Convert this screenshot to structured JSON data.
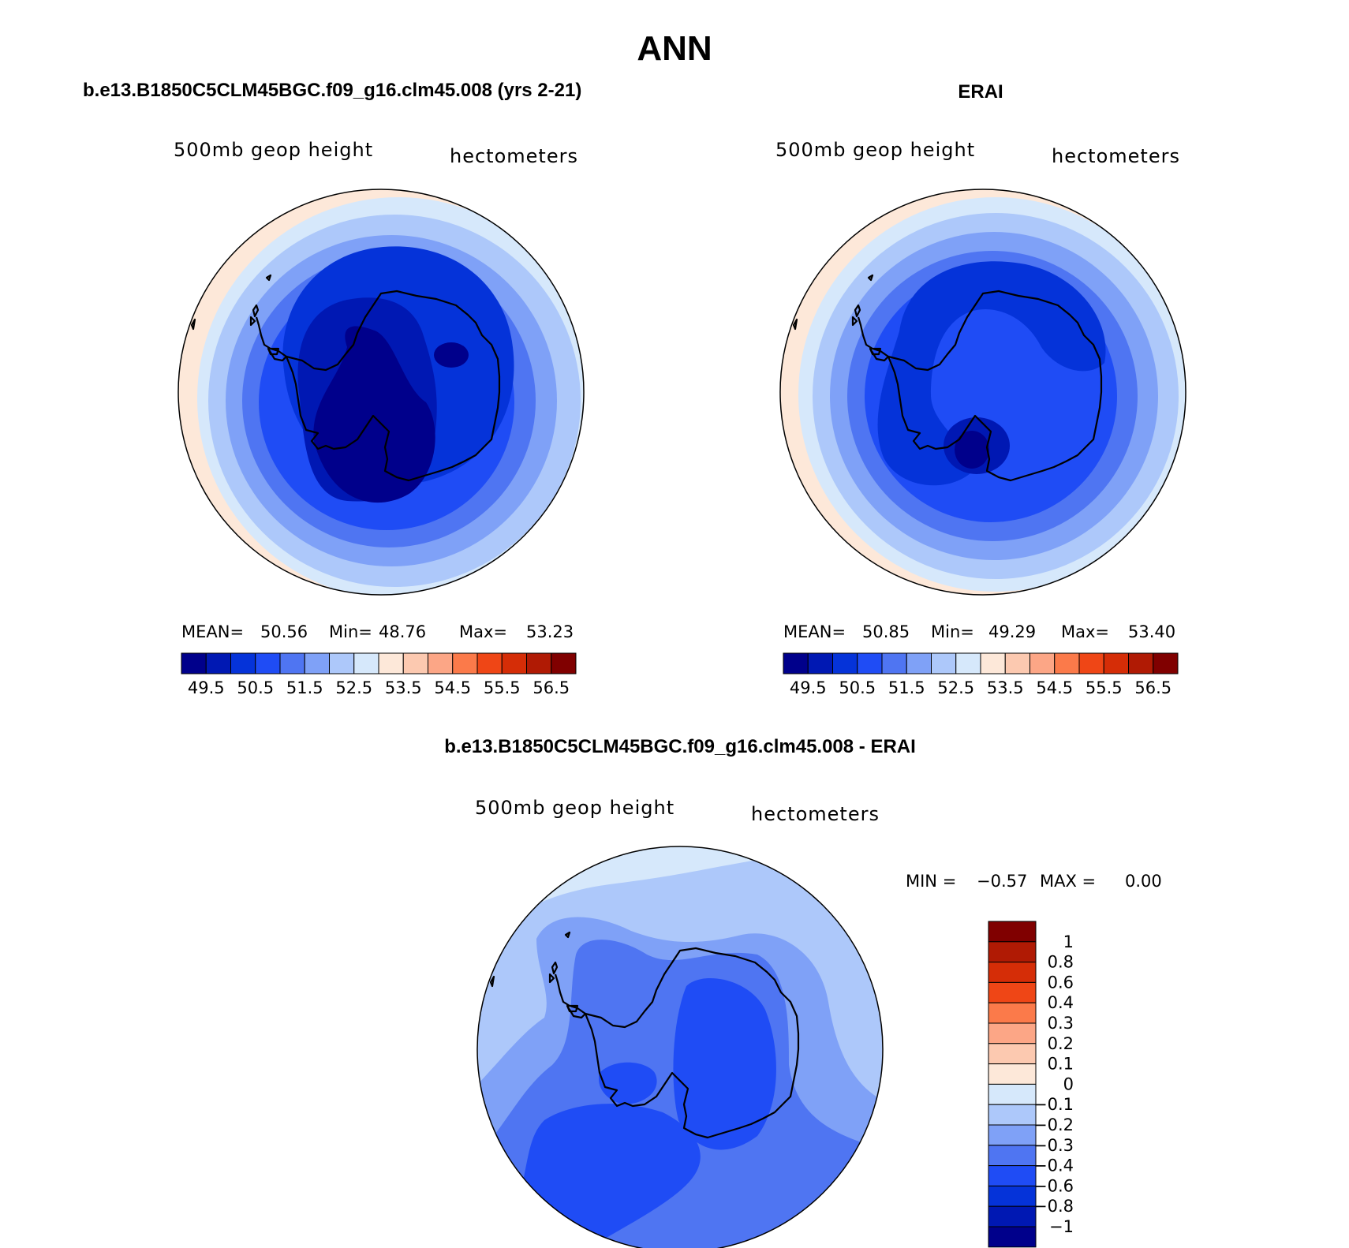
{
  "figure": {
    "title": "ANN"
  },
  "colors": {
    "plot_scale": [
      "#00008b",
      "#0018b3",
      "#0533d9",
      "#1f4cf5",
      "#4f75f2",
      "#7fa1f7",
      "#adc8fa",
      "#d6e8fb",
      "#fde8d9",
      "#fcc9b0",
      "#fca686",
      "#fb7a4a",
      "#ef4616",
      "#d52d07",
      "#b01a04",
      "#800000"
    ],
    "diff_scale": [
      "#00008b",
      "#0018b3",
      "#0533d9",
      "#1f4cf5",
      "#4f75f2",
      "#7fa1f7",
      "#adc8fa",
      "#d6e8fb",
      "#fde8d9",
      "#fcc9b0",
      "#fca686",
      "#fb7a4a",
      "#ef4616",
      "#d52d07",
      "#b01a04",
      "#800000"
    ],
    "coastline": "#000000",
    "sea_rim": "#000000"
  },
  "panels": [
    {
      "id": "model",
      "title": "b.e13.B1850C5CLM45BGC.f09_g16.clm45.008 (yrs 2-21)",
      "variable": "500mb geop height",
      "units": "hectometers",
      "stats": {
        "mean_label": "MEAN=",
        "mean": "50.56",
        "min_label": "Min=",
        "min": "48.76",
        "max_label": "Max=",
        "max": "53.23"
      },
      "colorbar_ticks": [
        "49.5",
        "50.5",
        "51.5",
        "52.5",
        "53.5",
        "54.5",
        "55.5",
        "56.5"
      ]
    },
    {
      "id": "obs",
      "title": "ERAI",
      "variable": "500mb geop height",
      "units": "hectometers",
      "stats": {
        "mean_label": "MEAN=",
        "mean": "50.85",
        "min_label": "Min=",
        "min": "49.29",
        "max_label": "Max=",
        "max": "53.40"
      },
      "colorbar_ticks": [
        "49.5",
        "50.5",
        "51.5",
        "52.5",
        "53.5",
        "54.5",
        "55.5",
        "56.5"
      ]
    }
  ],
  "diff_panel": {
    "title": "b.e13.B1850C5CLM45BGC.f09_g16.clm45.008 - ERAI",
    "variable": "500mb geop height",
    "units": "hectometers",
    "min_label": "MIN =",
    "min": "−0.57",
    "max_label": "MAX =",
    "max": "0.00",
    "colorbar_ticks": [
      "1",
      "0.8",
      "0.6",
      "0.4",
      "0.3",
      "0.2",
      "0.1",
      "0",
      "−0.1",
      "−0.2",
      "−0.3",
      "−0.4",
      "−0.6",
      "−0.8",
      "−1"
    ]
  }
}
